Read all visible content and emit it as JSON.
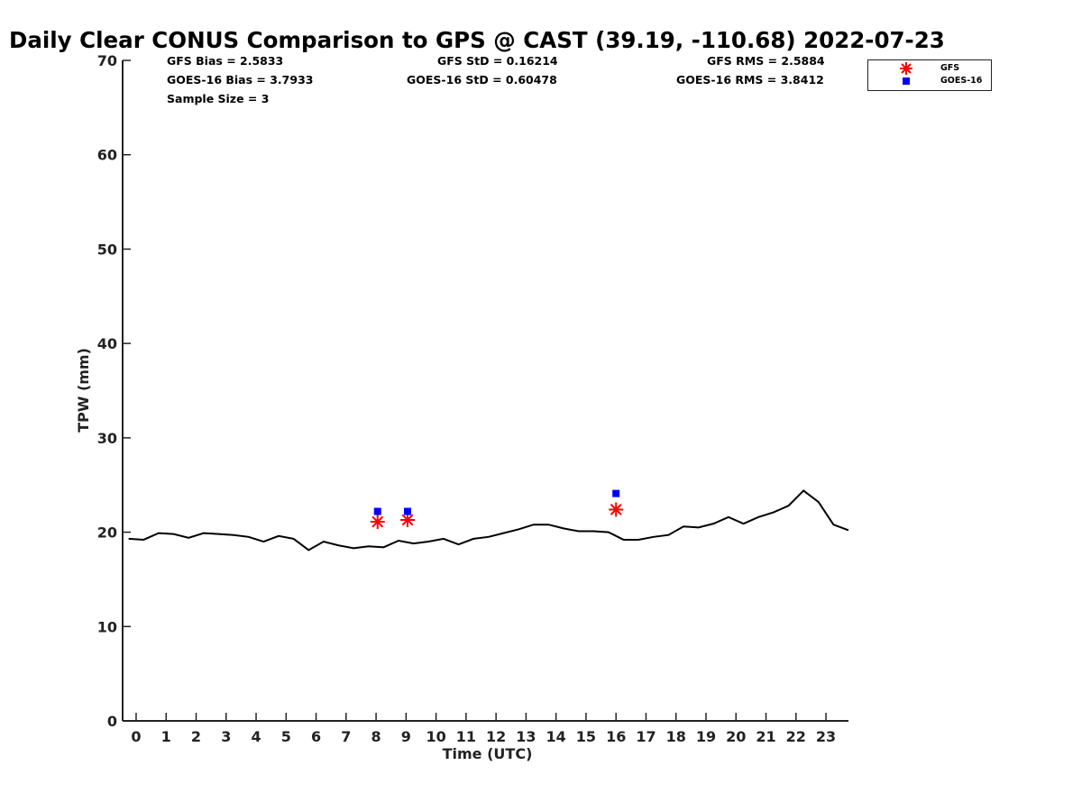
{
  "title": "Daily Clear CONUS Comparison to GPS @ CAST (39.19, -110.68) 2022-07-23",
  "stats": {
    "gfs_bias": "GFS Bias = 2.5833",
    "goes_bias": "GOES-16 Bias = 3.7933",
    "sample_size": "Sample Size = 3",
    "gfs_std": "GFS StD = 0.16214",
    "goes_std": "GOES-16 StD = 0.60478",
    "gfs_rms": "GFS RMS = 2.5884",
    "goes_rms": "GOES-16 RMS = 3.8412"
  },
  "legend": [
    {
      "name": "GFS",
      "marker": "asterisk",
      "color": "#ff0000"
    },
    {
      "name": "GOES-16",
      "marker": "square",
      "color": "#0000ff"
    }
  ],
  "chart_data": {
    "type": "line",
    "xlabel": "Time (UTC)",
    "ylabel": "TPW (mm)",
    "xlim": [
      -0.45,
      23.75
    ],
    "ylim": [
      0,
      70
    ],
    "xticks": [
      "0",
      "1",
      "2",
      "3",
      "4",
      "5",
      "6",
      "7",
      "8",
      "9",
      "10",
      "11",
      "12",
      "13",
      "14",
      "15",
      "16",
      "17",
      "18",
      "19",
      "20",
      "21",
      "22",
      "23"
    ],
    "yticks": [
      "0",
      "10",
      "20",
      "30",
      "40",
      "50",
      "60",
      "70"
    ],
    "grid": false,
    "legend_position": "top-right outside",
    "series": [
      {
        "name": "",
        "style": "line",
        "color": "#000000",
        "x": [
          -0.25,
          0.25,
          0.75,
          1.25,
          1.75,
          2.25,
          2.75,
          3.25,
          3.75,
          4.25,
          4.75,
          5.25,
          5.75,
          6.25,
          6.75,
          7.25,
          7.75,
          8.25,
          8.75,
          9.25,
          9.75,
          10.25,
          10.75,
          11.25,
          11.75,
          12.25,
          12.75,
          13.25,
          13.75,
          14.25,
          14.75,
          15.25,
          15.75,
          16.25,
          16.75,
          17.25,
          17.75,
          18.25,
          18.75,
          19.25,
          19.75,
          20.25,
          20.75,
          21.25,
          21.75,
          22.25,
          22.75,
          23.25,
          23.75
        ],
        "y": [
          19.3,
          19.2,
          19.9,
          19.8,
          19.4,
          19.9,
          19.8,
          19.7,
          19.5,
          19.0,
          19.6,
          19.3,
          18.1,
          19.0,
          18.6,
          18.3,
          18.5,
          18.4,
          19.1,
          18.8,
          19.0,
          19.3,
          18.7,
          19.3,
          19.5,
          19.9,
          20.3,
          20.8,
          20.8,
          20.4,
          20.1,
          20.1,
          20.0,
          19.2,
          19.2,
          19.5,
          19.7,
          20.6,
          20.5,
          20.9,
          21.6,
          20.9,
          21.6,
          22.1,
          22.8,
          24.4,
          23.2,
          20.8,
          20.2
        ]
      },
      {
        "name": "GFS",
        "style": "asterisk",
        "color": "#ff0000",
        "x": [
          8.05,
          9.05,
          16.0
        ],
        "y": [
          21.1,
          21.3,
          22.4
        ]
      },
      {
        "name": "GOES-16",
        "style": "square",
        "color": "#0000ff",
        "x": [
          8.05,
          9.05,
          16.0
        ],
        "y": [
          22.2,
          22.2,
          24.1
        ]
      }
    ]
  }
}
